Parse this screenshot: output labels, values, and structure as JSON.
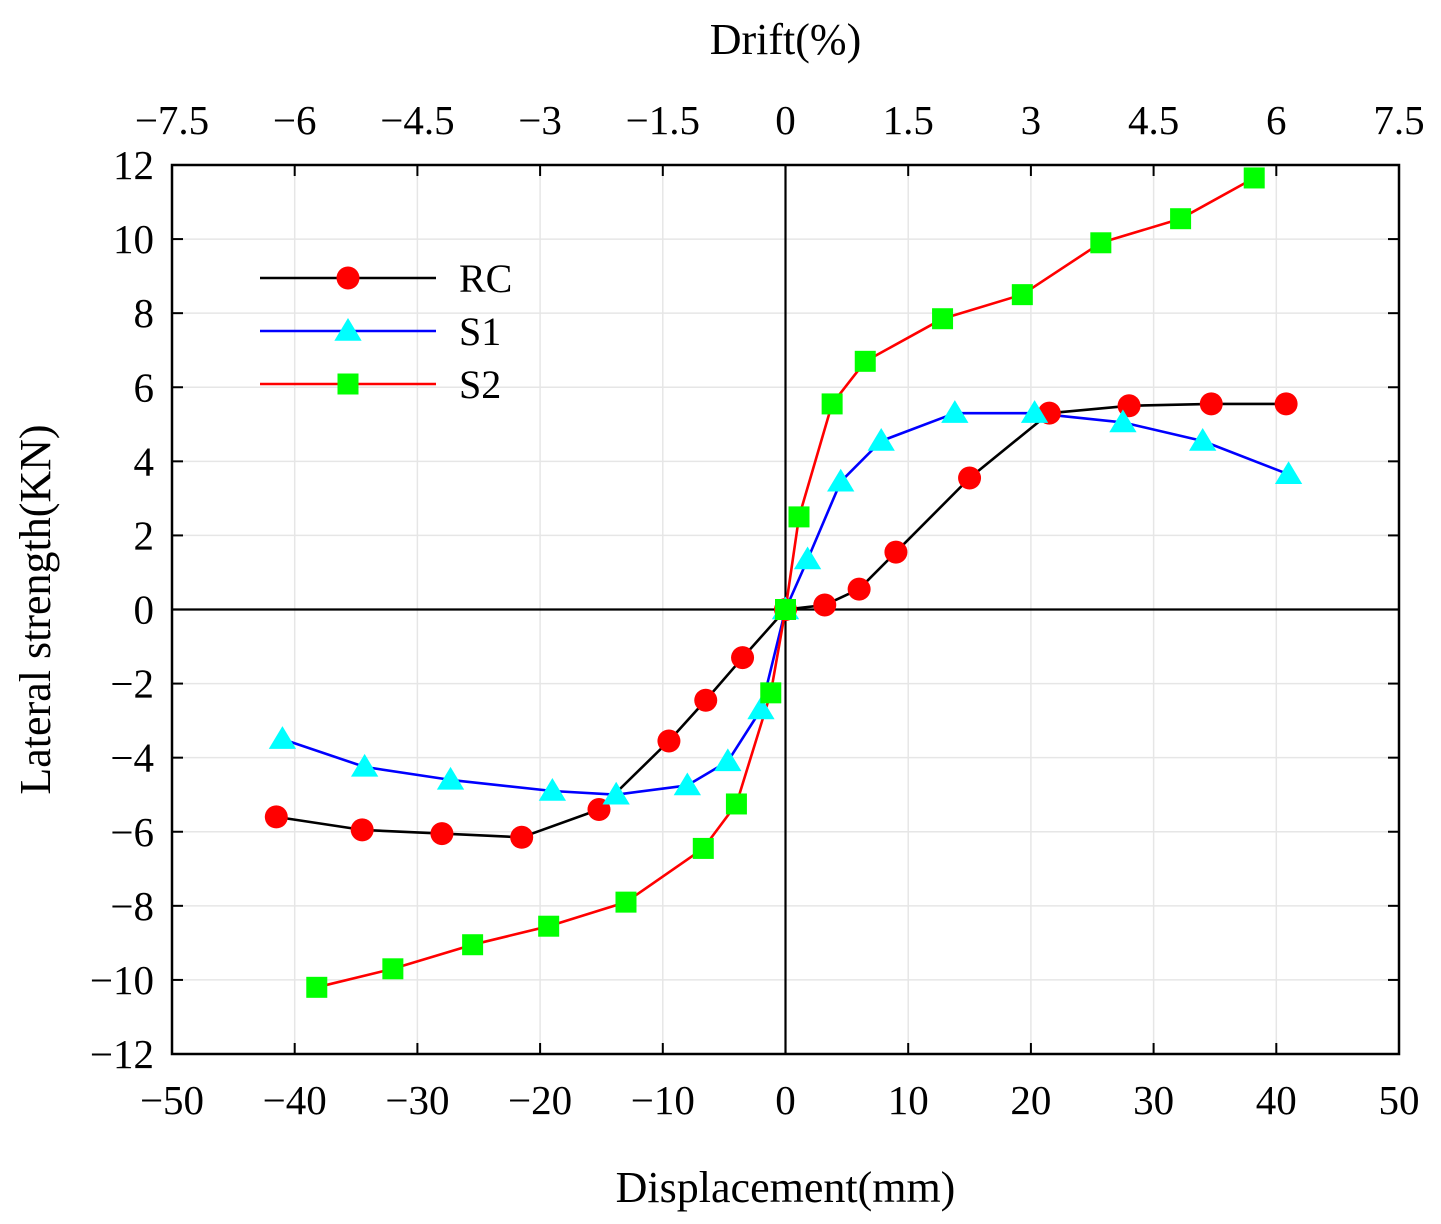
{
  "chart_data": {
    "type": "line",
    "title": "",
    "xlabel": "Displacement(mm)",
    "ylabel": "Lateral strength(KN)",
    "x2label": "Drift(%)",
    "xlim": [
      -50,
      50
    ],
    "ylim": [
      -12,
      12
    ],
    "x2lim": [
      -7.5,
      7.5
    ],
    "x_ticks": [
      -50,
      -40,
      -30,
      -20,
      -10,
      0,
      10,
      20,
      30,
      40,
      50
    ],
    "x_tick_labels": [
      "−50",
      "−40",
      "−30",
      "−20",
      "−10",
      "0",
      "10",
      "20",
      "30",
      "40",
      "50"
    ],
    "y_ticks": [
      -12,
      -10,
      -8,
      -6,
      -4,
      -2,
      0,
      2,
      4,
      6,
      8,
      10,
      12
    ],
    "y_tick_labels": [
      "−12",
      "−10",
      "−8",
      "−6",
      "−4",
      "−2",
      "0",
      "2",
      "4",
      "6",
      "8",
      "10",
      "12"
    ],
    "x2_ticks": [
      -7.5,
      -6,
      -4.5,
      -3,
      -1.5,
      0,
      1.5,
      3,
      4.5,
      6,
      7.5
    ],
    "x2_tick_labels": [
      "−7.5",
      "−6",
      "−4.5",
      "−3",
      "−1.5",
      "0",
      "1.5",
      "3",
      "4.5",
      "6",
      "7.5"
    ],
    "grid": true,
    "zero_lines": true,
    "legend_position": "top-left",
    "series": [
      {
        "name": "RC",
        "line_color": "#000000",
        "marker": "circle",
        "marker_color": "#ff0000",
        "points": [
          [
            -41.5,
            -5.6
          ],
          [
            -34.5,
            -5.95
          ],
          [
            -28,
            -6.05
          ],
          [
            -21.5,
            -6.15
          ],
          [
            -15.2,
            -5.4
          ],
          [
            -9.5,
            -3.55
          ],
          [
            -6.5,
            -2.45
          ],
          [
            -3.5,
            -1.3
          ],
          [
            0,
            0
          ],
          [
            3.2,
            0.12
          ],
          [
            6,
            0.55
          ],
          [
            9,
            1.55
          ],
          [
            15,
            3.55
          ],
          [
            21.5,
            5.3
          ],
          [
            28,
            5.5
          ],
          [
            34.7,
            5.55
          ],
          [
            40.8,
            5.55
          ]
        ]
      },
      {
        "name": "S1",
        "line_color": "#0000ff",
        "marker": "triangle",
        "marker_color": "#00ffff",
        "points": [
          [
            -41,
            -3.5
          ],
          [
            -34.3,
            -4.25
          ],
          [
            -27.3,
            -4.6
          ],
          [
            -19,
            -4.9
          ],
          [
            -13.8,
            -5.0
          ],
          [
            -8,
            -4.75
          ],
          [
            -4.7,
            -4.1
          ],
          [
            -2,
            -2.7
          ],
          [
            0,
            0
          ],
          [
            1.8,
            1.35
          ],
          [
            4.5,
            3.45
          ],
          [
            7.8,
            4.55
          ],
          [
            13.8,
            5.3
          ],
          [
            20.3,
            5.3
          ],
          [
            27.5,
            5.05
          ],
          [
            34,
            4.55
          ],
          [
            41,
            3.65
          ]
        ]
      },
      {
        "name": "S2",
        "line_color": "#ff0000",
        "marker": "square",
        "marker_color": "#00ff00",
        "points": [
          [
            -38.2,
            -10.2
          ],
          [
            -32,
            -9.7
          ],
          [
            -25.5,
            -9.05
          ],
          [
            -19.3,
            -8.55
          ],
          [
            -13,
            -7.9
          ],
          [
            -6.7,
            -6.45
          ],
          [
            -4,
            -5.25
          ],
          [
            -1.2,
            -2.25
          ],
          [
            0,
            0
          ],
          [
            1.1,
            2.5
          ],
          [
            3.8,
            5.55
          ],
          [
            6.5,
            6.7
          ],
          [
            12.8,
            7.85
          ],
          [
            19.3,
            8.5
          ],
          [
            25.7,
            9.9
          ],
          [
            32.2,
            10.55
          ],
          [
            38.2,
            11.65
          ]
        ]
      }
    ]
  }
}
